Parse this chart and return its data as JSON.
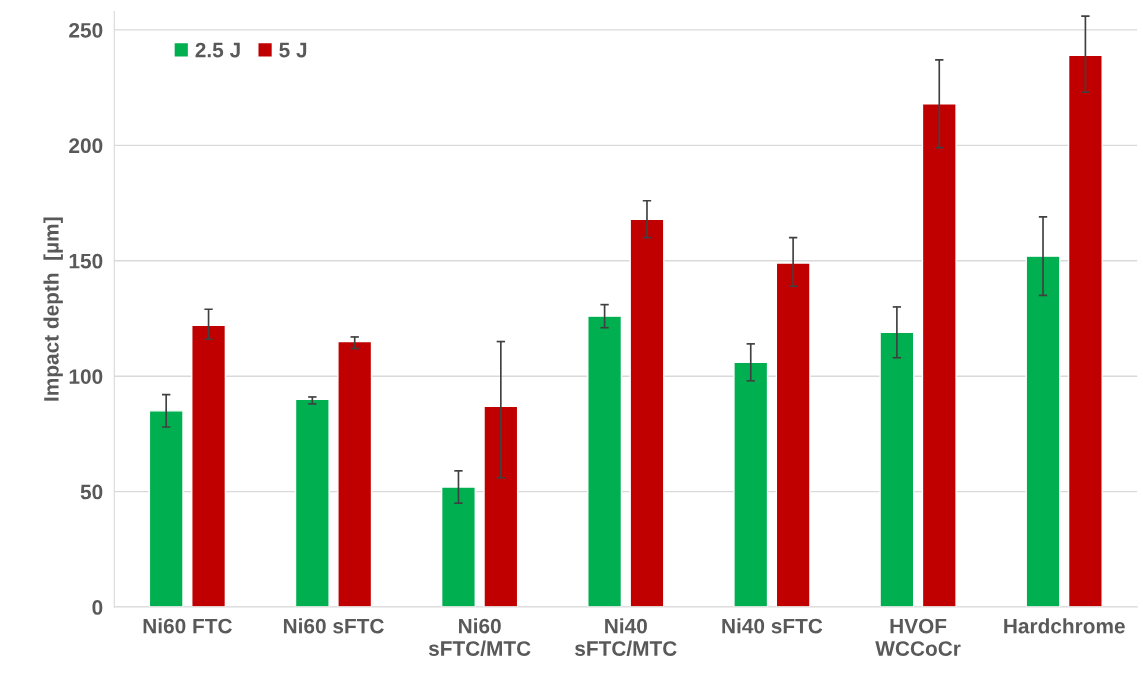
{
  "chart_data": {
    "type": "bar",
    "ylabel": "Impact depth  [µm]",
    "categories": [
      "Ni60 FTC",
      "Ni60 sFTC",
      "Ni60\nsFTC/MTC",
      "Ni40\nsFTC/MTC",
      "Ni40 sFTC",
      "HVOF\nWCCoCr",
      "Hardchrome"
    ],
    "series": [
      {
        "name": "2.5 J",
        "color": "#00b050",
        "values": [
          85,
          90,
          52,
          126,
          106,
          119,
          152
        ],
        "errors": [
          [
            78,
            92
          ],
          [
            88,
            91
          ],
          [
            45,
            59
          ],
          [
            121,
            131
          ],
          [
            98,
            114
          ],
          [
            108,
            130
          ],
          [
            135,
            169
          ]
        ]
      },
      {
        "name": "5 J",
        "color": "#c00000",
        "values": [
          122,
          115,
          87,
          168,
          149,
          218,
          239
        ],
        "errors": [
          [
            116,
            129
          ],
          [
            112,
            117
          ],
          [
            56,
            115
          ],
          [
            160,
            176
          ],
          [
            139,
            160
          ],
          [
            199,
            237
          ],
          [
            223,
            256
          ]
        ]
      }
    ],
    "ylim": [
      0,
      258
    ],
    "yticks": [
      0,
      50,
      100,
      150,
      200,
      250
    ],
    "grid": "y",
    "legend": "top left"
  }
}
